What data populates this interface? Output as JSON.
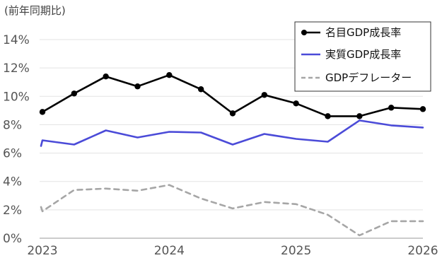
{
  "chart_data": {
    "type": "line",
    "unit_label": "(前年同期比)",
    "x_tick_labels": [
      "2023",
      "2024",
      "2025",
      "2026"
    ],
    "y_tick_labels": [
      "0%",
      "2%",
      "4%",
      "6%",
      "8%",
      "10%",
      "12%",
      "14%"
    ],
    "ylim": [
      0,
      14
    ],
    "x": [
      2022.95,
      2023.0,
      2023.25,
      2023.5,
      2023.75,
      2024.0,
      2024.25,
      2024.5,
      2024.75,
      2025.0,
      2025.25,
      2025.5,
      2025.75,
      2026.0
    ],
    "series": [
      {
        "name": "名目GDP成長率",
        "color": "#000000",
        "style": "solid-markers",
        "values": [
          null,
          8.9,
          10.2,
          11.4,
          10.7,
          11.5,
          10.5,
          8.8,
          10.1,
          9.5,
          8.6,
          8.6,
          9.2,
          9.1
        ]
      },
      {
        "name": "実質GDP成長率",
        "color": "#4B4BD8",
        "style": "solid",
        "values": [
          6.5,
          6.9,
          6.6,
          7.6,
          7.1,
          7.5,
          7.45,
          6.6,
          7.35,
          7.0,
          6.8,
          8.3,
          7.95,
          7.8
        ]
      },
      {
        "name": "GDPデフレーター",
        "color": "#A6A6A6",
        "style": "dashed",
        "values": [
          2.2,
          1.9,
          3.4,
          3.5,
          3.35,
          3.75,
          2.8,
          2.1,
          2.55,
          2.4,
          1.65,
          0.2,
          1.2,
          1.2
        ]
      }
    ],
    "grid": true,
    "legend_position": "top-right"
  }
}
